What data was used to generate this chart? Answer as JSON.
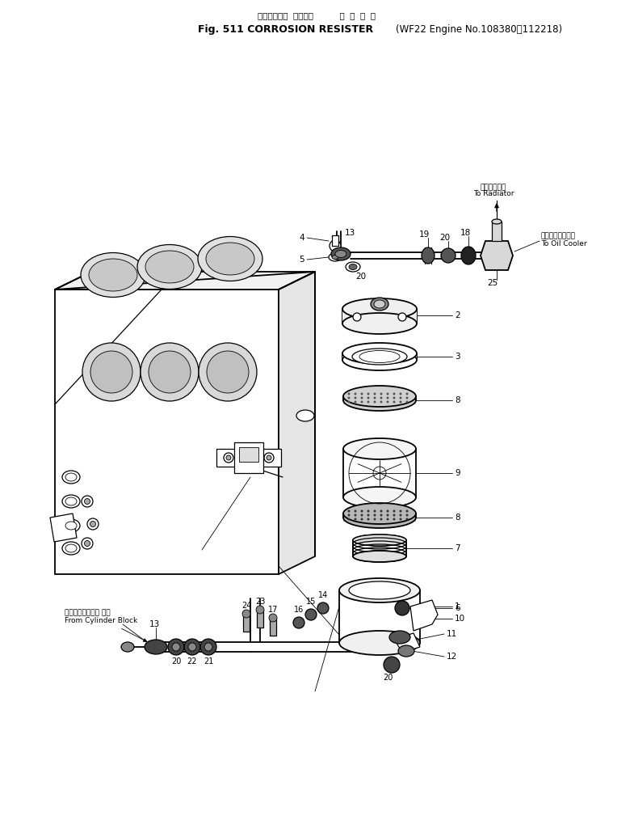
{
  "title_line1": "コロージョン  レジスタ          適  用  号  機",
  "title_line2": "Fig. 511 CORROSION RESISTER",
  "title_sub": "(WF22 Engine No.108380～112218)",
  "bg_color": "#ffffff",
  "ink_color": "#000000",
  "label_to_radiator_jp": "ラジエータへ",
  "label_to_radiator_en": "To Radiator",
  "label_to_oilcooler_jp": "オイルクーラーへ",
  "label_to_oilcooler_en": "To Oil Cooler",
  "label_from_cylinder_jp": "シリンダブロック から",
  "label_from_cylinder_en": "From Cylinder Block"
}
